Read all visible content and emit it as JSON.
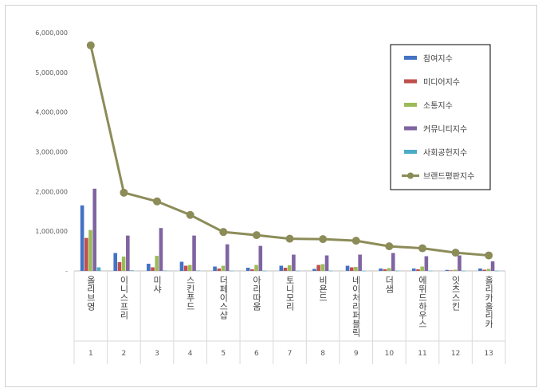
{
  "chart_data": {
    "type": "bar",
    "title": "",
    "xlabel": "",
    "ylabel": "",
    "ylim": [
      0,
      6000000
    ],
    "yticks": [
      "-",
      "1,000,000",
      "2,000,000",
      "3,000,000",
      "4,000,000",
      "5,000,000",
      "6,000,000"
    ],
    "grid": false,
    "legend_position": "top-right",
    "categories": [
      "올리브영",
      "이니스프리",
      "미샤",
      "스킨푸드",
      "더페이스샵",
      "아리따움",
      "토니모리",
      "비욘드",
      "네이처리퍼블릭",
      "더샘",
      "에뛰드하우스",
      "잇츠스킨",
      "홀리카홀리카"
    ],
    "category_numbers": [
      "1",
      "2",
      "3",
      "4",
      "5",
      "6",
      "7",
      "8",
      "9",
      "10",
      "11",
      "12",
      "13"
    ],
    "series": [
      {
        "name": "참여지수",
        "kind": "bar",
        "color": "#4472c4",
        "values": [
          1650000,
          450000,
          180000,
          230000,
          110000,
          80000,
          130000,
          50000,
          130000,
          60000,
          60000,
          25000,
          60000
        ]
      },
      {
        "name": "미디어지수",
        "kind": "bar",
        "color": "#c0504d",
        "values": [
          830000,
          220000,
          90000,
          130000,
          60000,
          40000,
          80000,
          150000,
          90000,
          40000,
          40000,
          15000,
          30000
        ]
      },
      {
        "name": "소통지수",
        "kind": "bar",
        "color": "#9bbb59",
        "values": [
          1030000,
          360000,
          380000,
          150000,
          130000,
          150000,
          140000,
          170000,
          100000,
          70000,
          110000,
          30000,
          50000
        ]
      },
      {
        "name": "커뮤니티지수",
        "kind": "bar",
        "color": "#8064a2",
        "values": [
          2070000,
          890000,
          1080000,
          890000,
          670000,
          630000,
          410000,
          390000,
          410000,
          450000,
          370000,
          390000,
          240000
        ]
      },
      {
        "name": "사회공헌지수",
        "kind": "bar",
        "color": "#4bacc6",
        "values": [
          90000,
          15000,
          10000,
          10000,
          5000,
          5000,
          5000,
          5000,
          5000,
          5000,
          5000,
          5000,
          5000
        ]
      },
      {
        "name": "브랜드평판지수",
        "kind": "line",
        "color": "#8c8c59",
        "values": [
          5680000,
          1970000,
          1750000,
          1410000,
          980000,
          900000,
          810000,
          800000,
          760000,
          620000,
          570000,
          460000,
          390000
        ]
      }
    ]
  }
}
